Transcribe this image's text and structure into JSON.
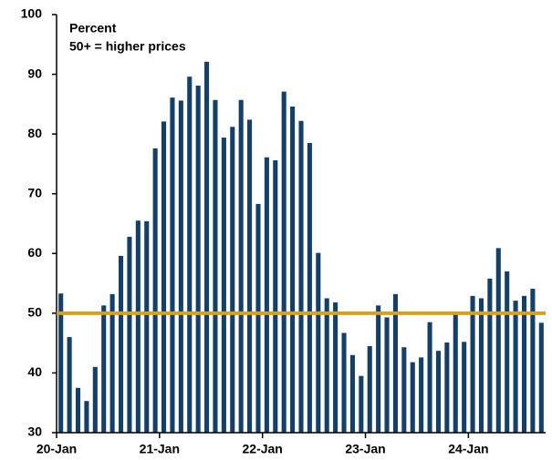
{
  "chart_data": {
    "type": "bar",
    "annotations": [
      "Percent",
      "50+ = higher prices"
    ],
    "categories": [
      "20-Jan",
      null,
      null,
      null,
      null,
      null,
      null,
      null,
      null,
      null,
      null,
      null,
      "21-Jan",
      null,
      null,
      null,
      null,
      null,
      null,
      null,
      null,
      null,
      null,
      null,
      "22-Jan",
      null,
      null,
      null,
      null,
      null,
      null,
      null,
      null,
      null,
      null,
      null,
      "23-Jan",
      null,
      null,
      null,
      null,
      null,
      null,
      null,
      null,
      null,
      null,
      null,
      "24-Jan",
      null,
      null,
      null,
      null,
      null,
      null,
      null,
      null
    ],
    "values": [
      53.3,
      46,
      37.5,
      35.3,
      41,
      51.3,
      53.2,
      59.6,
      62.8,
      65.5,
      65.4,
      77.6,
      82.1,
      86.1,
      85.6,
      89.6,
      88.1,
      92.1,
      85.7,
      79.4,
      81.2,
      85.7,
      82.4,
      68.3,
      76.1,
      75.6,
      87.1,
      84.6,
      82.2,
      78.5,
      60.1,
      52.5,
      51.8,
      46.7,
      43,
      39.5,
      44.5,
      51.3,
      49.3,
      53.2,
      44.3,
      41.8,
      42.6,
      48.5,
      43.7,
      45.1,
      49.8,
      45.2,
      52.9,
      52.5,
      55.8,
      60.9,
      57,
      52.1,
      52.9,
      54.1,
      48.4
    ],
    "color": "#123f6b",
    "reference_line": {
      "value": 50,
      "color": "#d4a21c"
    },
    "ylim": [
      30,
      100
    ],
    "yticks": [
      30,
      40,
      50,
      60,
      70,
      80,
      90,
      100
    ],
    "grid": false
  }
}
